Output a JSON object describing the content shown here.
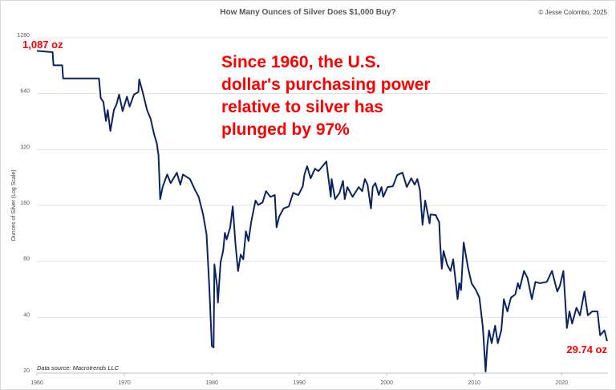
{
  "chart_data": {
    "type": "line",
    "title": "How Many Ounces of Silver Does $1,000 Buy?",
    "copyright": "© Jesse Colombo, 2025",
    "xlabel": "",
    "ylabel": "Ounces of Silver (Log Scale)",
    "yscale": "log2",
    "ylim": [
      20,
      1280
    ],
    "xlim": [
      1960,
      2025.3
    ],
    "yticks": [
      20,
      40,
      80,
      160,
      320,
      640,
      1280
    ],
    "xticks": [
      1960,
      1970,
      1980,
      1990,
      2000,
      2010,
      2020
    ],
    "grid": "horizontal",
    "line_color": "#0b2461",
    "annotation_color": "#ff0000",
    "annotations": {
      "start_label": "1,087 oz",
      "end_label": "29.74 oz",
      "headline": [
        "Since 1960, the U.S.",
        "dollar's purchasing power",
        "relative to silver has",
        "plunged by 97%"
      ]
    },
    "source": "Data source: Macrotrends LLC",
    "series": [
      {
        "name": "Ounces per $1,000",
        "points": [
          [
            1960.0,
            1087
          ],
          [
            1961.8,
            1070
          ],
          [
            1961.9,
            909
          ],
          [
            1962.9,
            909
          ],
          [
            1963.0,
            772
          ],
          [
            1967.1,
            772
          ],
          [
            1967.3,
            605
          ],
          [
            1967.6,
            577
          ],
          [
            1967.9,
            456
          ],
          [
            1968.1,
            522
          ],
          [
            1968.4,
            403
          ],
          [
            1968.8,
            522
          ],
          [
            1969.1,
            559
          ],
          [
            1969.4,
            633
          ],
          [
            1969.8,
            515
          ],
          [
            1970.3,
            616
          ],
          [
            1970.6,
            545
          ],
          [
            1971.1,
            633
          ],
          [
            1971.6,
            652
          ],
          [
            1971.7,
            764
          ],
          [
            1972.1,
            652
          ],
          [
            1972.6,
            522
          ],
          [
            1973.0,
            470
          ],
          [
            1973.4,
            387
          ],
          [
            1973.7,
            347
          ],
          [
            1973.9,
            299
          ],
          [
            1974.1,
            173
          ],
          [
            1974.4,
            203
          ],
          [
            1974.9,
            235
          ],
          [
            1975.3,
            211
          ],
          [
            1976.0,
            240
          ],
          [
            1976.4,
            207
          ],
          [
            1976.7,
            235
          ],
          [
            1977.5,
            222
          ],
          [
            1978.1,
            193
          ],
          [
            1978.5,
            178
          ],
          [
            1979.0,
            143
          ],
          [
            1979.4,
            112
          ],
          [
            1979.7,
            60
          ],
          [
            1980.0,
            28
          ],
          [
            1980.2,
            27.5
          ],
          [
            1980.3,
            77
          ],
          [
            1980.6,
            59
          ],
          [
            1980.7,
            48
          ],
          [
            1981.0,
            79
          ],
          [
            1981.3,
            91
          ],
          [
            1981.5,
            114
          ],
          [
            1981.7,
            105
          ],
          [
            1982.1,
            122
          ],
          [
            1982.4,
            158
          ],
          [
            1982.7,
            100
          ],
          [
            1983.0,
            71
          ],
          [
            1983.3,
            87
          ],
          [
            1983.6,
            82
          ],
          [
            1983.9,
            116
          ],
          [
            1984.2,
            103
          ],
          [
            1984.5,
            130
          ],
          [
            1985.0,
            170
          ],
          [
            1985.3,
            161
          ],
          [
            1985.8,
            166
          ],
          [
            1986.2,
            191
          ],
          [
            1986.7,
            178
          ],
          [
            1987.2,
            182
          ],
          [
            1987.4,
            122
          ],
          [
            1987.7,
            139
          ],
          [
            1988.2,
            154
          ],
          [
            1988.8,
            158
          ],
          [
            1989.3,
            187
          ],
          [
            1989.9,
            182
          ],
          [
            1990.4,
            203
          ],
          [
            1990.6,
            235
          ],
          [
            1990.9,
            260
          ],
          [
            1991.3,
            224
          ],
          [
            1991.8,
            252
          ],
          [
            1992.2,
            245
          ],
          [
            1993.1,
            276
          ],
          [
            1993.6,
            178
          ],
          [
            1993.7,
            222
          ],
          [
            1994.1,
            173
          ],
          [
            1994.6,
            187
          ],
          [
            1995.0,
            217
          ],
          [
            1995.2,
            173
          ],
          [
            1995.5,
            201
          ],
          [
            1996.1,
            178
          ],
          [
            1996.8,
            201
          ],
          [
            1997.2,
            191
          ],
          [
            1997.5,
            222
          ],
          [
            1997.8,
            207
          ],
          [
            1998.2,
            154
          ],
          [
            1998.4,
            201
          ],
          [
            1998.7,
            211
          ],
          [
            1999.1,
            182
          ],
          [
            1999.4,
            201
          ],
          [
            1999.6,
            178
          ],
          [
            2000.1,
            201
          ],
          [
            2000.7,
            203
          ],
          [
            2001.2,
            233
          ],
          [
            2001.8,
            240
          ],
          [
            2002.3,
            201
          ],
          [
            2002.8,
            224
          ],
          [
            2003.2,
            207
          ],
          [
            2003.5,
            222
          ],
          [
            2003.8,
            193
          ],
          [
            2004.1,
            126
          ],
          [
            2004.4,
            170
          ],
          [
            2004.9,
            128
          ],
          [
            2005.0,
            143
          ],
          [
            2005.6,
            142
          ],
          [
            2006.0,
            130
          ],
          [
            2006.1,
            101
          ],
          [
            2006.3,
            73
          ],
          [
            2006.5,
            91
          ],
          [
            2006.9,
            77
          ],
          [
            2007.3,
            71
          ],
          [
            2007.6,
            82
          ],
          [
            2008.1,
            50
          ],
          [
            2008.3,
            61
          ],
          [
            2008.5,
            56
          ],
          [
            2008.8,
            101
          ],
          [
            2009.3,
            74
          ],
          [
            2009.7,
            61
          ],
          [
            2010.2,
            56
          ],
          [
            2010.6,
            51
          ],
          [
            2011.0,
            35
          ],
          [
            2011.3,
            20.4
          ],
          [
            2011.5,
            28
          ],
          [
            2011.7,
            34
          ],
          [
            2012.0,
            29
          ],
          [
            2012.4,
            36
          ],
          [
            2012.7,
            29
          ],
          [
            2013.1,
            34
          ],
          [
            2013.4,
            50
          ],
          [
            2013.8,
            43
          ],
          [
            2014.2,
            51
          ],
          [
            2014.7,
            53
          ],
          [
            2015.0,
            61
          ],
          [
            2015.2,
            57
          ],
          [
            2015.7,
            71
          ],
          [
            2016.1,
            65
          ],
          [
            2016.6,
            50
          ],
          [
            2017.0,
            62
          ],
          [
            2017.5,
            61
          ],
          [
            2018.3,
            62
          ],
          [
            2018.9,
            71
          ],
          [
            2019.5,
            55
          ],
          [
            2019.8,
            59
          ],
          [
            2020.2,
            71
          ],
          [
            2020.6,
            35
          ],
          [
            2020.9,
            43
          ],
          [
            2021.2,
            37
          ],
          [
            2021.7,
            45
          ],
          [
            2022.1,
            41
          ],
          [
            2022.6,
            55
          ],
          [
            2023.0,
            41
          ],
          [
            2023.5,
            43
          ],
          [
            2024.1,
            43
          ],
          [
            2024.4,
            32
          ],
          [
            2024.9,
            34
          ],
          [
            2025.2,
            29.74
          ]
        ]
      }
    ]
  }
}
